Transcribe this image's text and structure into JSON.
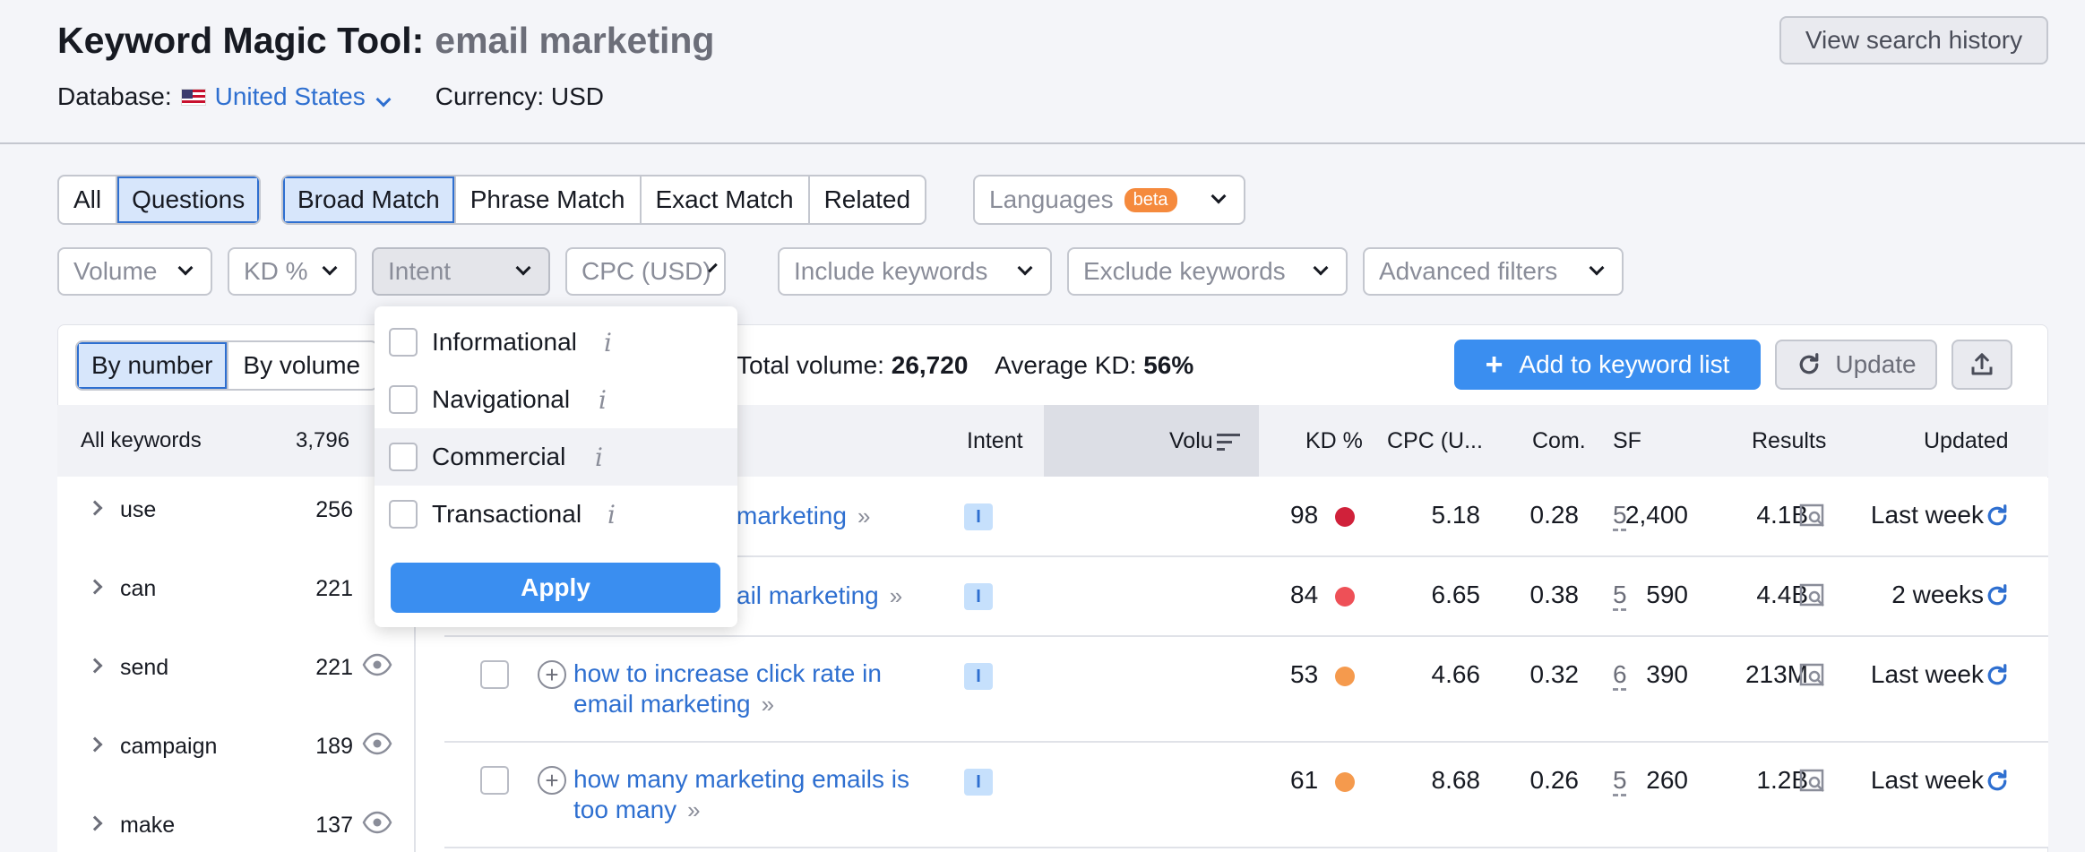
{
  "header": {
    "title": "Keyword Magic Tool:",
    "query": "email marketing",
    "database_label": "Database:",
    "database_value": "United States",
    "currency": "Currency: USD",
    "history_button": "View search history"
  },
  "tabs": {
    "group1": [
      "All",
      "Questions"
    ],
    "group2": [
      "Broad Match",
      "Phrase Match",
      "Exact Match",
      "Related"
    ],
    "languages": "Languages",
    "beta": "beta"
  },
  "filters": {
    "volume": "Volume",
    "kd": "KD %",
    "intent": "Intent",
    "cpc": "CPC (USD)",
    "include": "Include keywords",
    "exclude": "Exclude keywords",
    "advanced": "Advanced filters"
  },
  "toolbar": {
    "by_number": "By number",
    "by_volume": "By volume",
    "total_volume_label": "Total volume:",
    "total_volume": "26,720",
    "avg_kd_label": "Average KD:",
    "avg_kd": "56%",
    "add_button": "Add to keyword list",
    "update_button": "Update"
  },
  "sidebar": {
    "all_label": "All keywords",
    "all_count": "3,796",
    "items": [
      {
        "label": "use",
        "count": "256"
      },
      {
        "label": "can",
        "count": "221"
      },
      {
        "label": "send",
        "count": "221"
      },
      {
        "label": "campaign",
        "count": "189"
      },
      {
        "label": "make",
        "count": "137"
      }
    ]
  },
  "table": {
    "headers": {
      "intent": "Intent",
      "volume": "Volu",
      "kd": "KD %",
      "cpc": "CPC (U...",
      "com": "Com.",
      "sf": "SF",
      "results": "Results",
      "updated": "Updated"
    },
    "rows": [
      {
        "kw1": "marketing",
        "kw2": "",
        "intent": "I",
        "volume": "2,400",
        "kd": "98",
        "kd_color": "#d0213a",
        "cpc": "5.18",
        "com": "0.28",
        "sf": "5",
        "results": "4.1B",
        "updated": "Last week"
      },
      {
        "kw1": "ail marketing",
        "kw2": "",
        "intent": "I",
        "volume": "590",
        "kd": "84",
        "kd_color": "#ee5057",
        "cpc": "6.65",
        "com": "0.38",
        "sf": "5",
        "results": "4.4B",
        "updated": "2 weeks"
      },
      {
        "kw1": "how to increase click rate in",
        "kw2": "email marketing",
        "intent": "I",
        "volume": "390",
        "kd": "53",
        "kd_color": "#f59a4d",
        "cpc": "4.66",
        "com": "0.32",
        "sf": "6",
        "results": "213M",
        "updated": "Last week"
      },
      {
        "kw1": "how many marketing emails is",
        "kw2": "too many",
        "intent": "I",
        "volume": "260",
        "kd": "61",
        "kd_color": "#f59a4d",
        "cpc": "8.68",
        "com": "0.26",
        "sf": "5",
        "results": "1.2B",
        "updated": "Last week"
      }
    ]
  },
  "intent_menu": {
    "options": [
      "Informational",
      "Navigational",
      "Commercial",
      "Transactional"
    ],
    "info_glyph": "i",
    "apply": "Apply"
  }
}
